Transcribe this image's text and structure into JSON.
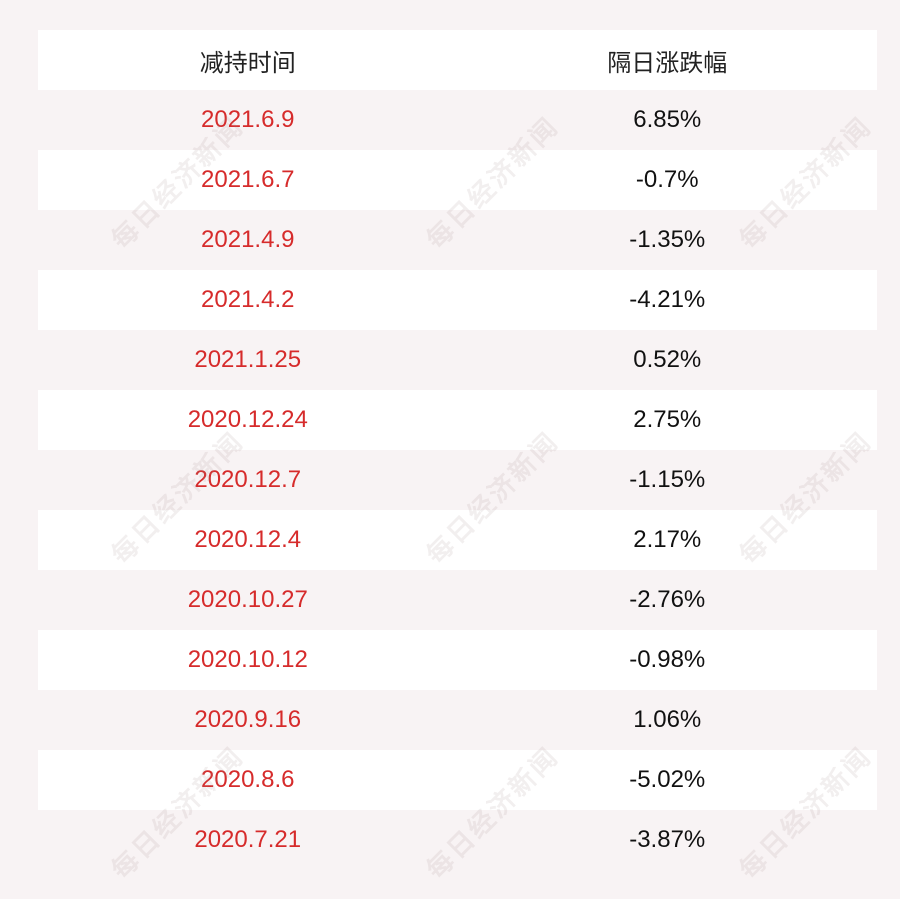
{
  "table": {
    "headers": {
      "date": "减持时间",
      "change": "隔日涨跌幅"
    },
    "rows": [
      {
        "date": "2021.6.9",
        "change": "6.85%"
      },
      {
        "date": "2021.6.7",
        "change": "-0.7%"
      },
      {
        "date": "2021.4.9",
        "change": "-1.35%"
      },
      {
        "date": "2021.4.2",
        "change": "-4.21%"
      },
      {
        "date": "2021.1.25",
        "change": "0.52%"
      },
      {
        "date": "2020.12.24",
        "change": "2.75%"
      },
      {
        "date": "2020.12.7",
        "change": "-1.15%"
      },
      {
        "date": "2020.12.4",
        "change": "2.17%"
      },
      {
        "date": "2020.10.27",
        "change": "-2.76%"
      },
      {
        "date": "2020.10.12",
        "change": "-0.98%"
      },
      {
        "date": "2020.9.16",
        "change": "1.06%"
      },
      {
        "date": "2020.8.6",
        "change": "-5.02%"
      },
      {
        "date": "2020.7.21",
        "change": "-3.87%"
      }
    ]
  },
  "watermark": {
    "text": "每日经济新闻"
  },
  "colors": {
    "date_text": "#d62b2b",
    "value_text": "#111111",
    "stripe_light": "#ffffff",
    "stripe_tint": "#f8f3f4"
  }
}
